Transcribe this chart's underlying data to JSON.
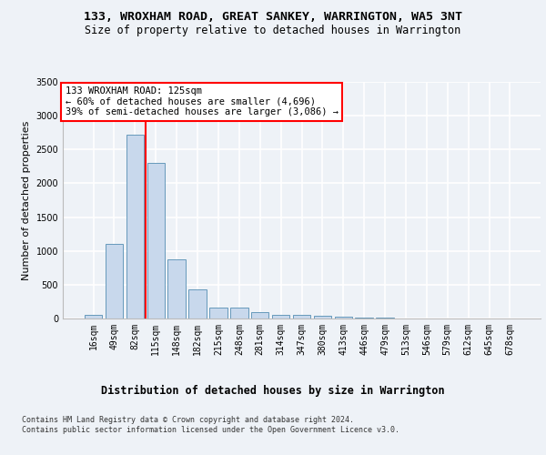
{
  "title1": "133, WROXHAM ROAD, GREAT SANKEY, WARRINGTON, WA5 3NT",
  "title2": "Size of property relative to detached houses in Warrington",
  "xlabel": "Distribution of detached houses by size in Warrington",
  "ylabel": "Number of detached properties",
  "categories": [
    "16sqm",
    "49sqm",
    "82sqm",
    "115sqm",
    "148sqm",
    "182sqm",
    "215sqm",
    "248sqm",
    "281sqm",
    "314sqm",
    "347sqm",
    "380sqm",
    "413sqm",
    "446sqm",
    "479sqm",
    "513sqm",
    "546sqm",
    "579sqm",
    "612sqm",
    "645sqm",
    "678sqm"
  ],
  "values": [
    55,
    1100,
    2720,
    2300,
    870,
    430,
    165,
    160,
    90,
    60,
    50,
    40,
    25,
    18,
    10,
    5,
    5,
    3,
    2,
    2,
    2
  ],
  "bar_color": "#c8d8ec",
  "bar_edge_color": "#6699bb",
  "vline_color": "red",
  "annotation_text": "133 WROXHAM ROAD: 125sqm\n← 60% of detached houses are smaller (4,696)\n39% of semi-detached houses are larger (3,086) →",
  "annotation_box_color": "white",
  "annotation_box_edge": "red",
  "ylim": [
    0,
    3500
  ],
  "yticks": [
    0,
    500,
    1000,
    1500,
    2000,
    2500,
    3000,
    3500
  ],
  "bg_color": "#eef2f7",
  "plot_bg_color": "#eef2f7",
  "grid_color": "#ffffff",
  "footer": "Contains HM Land Registry data © Crown copyright and database right 2024.\nContains public sector information licensed under the Open Government Licence v3.0.",
  "title1_fontsize": 9.5,
  "title2_fontsize": 8.5,
  "xlabel_fontsize": 8.5,
  "ylabel_fontsize": 8,
  "tick_fontsize": 7,
  "footer_fontsize": 6,
  "vline_pos": 2.5
}
